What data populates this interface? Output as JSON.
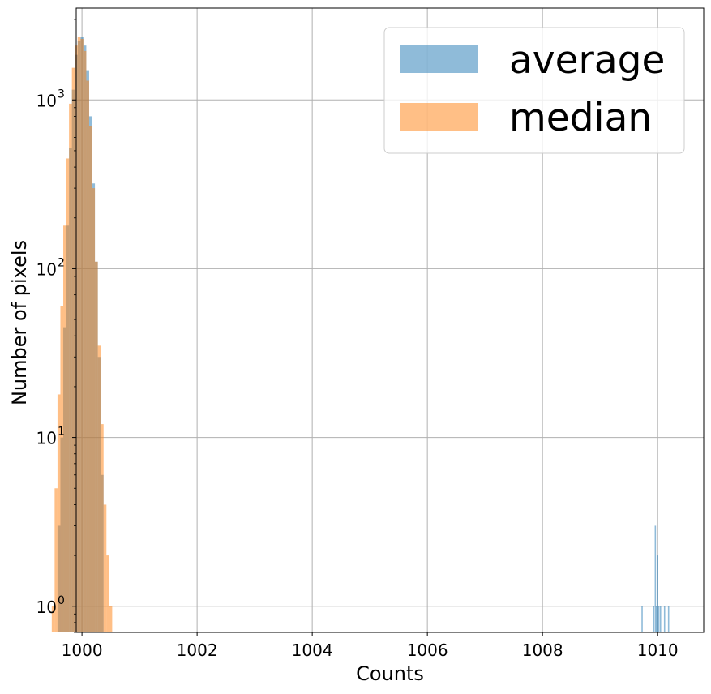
{
  "chart_data": {
    "type": "histogram",
    "xlabel": "Counts",
    "ylabel": "Number of pixels",
    "xlim": [
      999.9,
      1010.8
    ],
    "ylim": [
      0.7,
      3500
    ],
    "y_scale": "log",
    "grid": true,
    "legend_position": "top-right",
    "x_ticks": [
      "1000",
      "1002",
      "1004",
      "1006",
      "1008",
      "1010"
    ],
    "y_ticks": [
      {
        "base": "10",
        "exp": "0"
      },
      {
        "base": "10",
        "exp": "1"
      },
      {
        "base": "10",
        "exp": "2"
      },
      {
        "base": "10",
        "exp": "3"
      }
    ],
    "series": [
      {
        "name": "average",
        "color": "#1f77b4",
        "opacity": 0.5,
        "bins": [
          [
            999.6,
            3
          ],
          [
            999.65,
            10
          ],
          [
            999.7,
            45
          ],
          [
            999.75,
            180
          ],
          [
            999.8,
            520
          ],
          [
            999.85,
            1150
          ],
          [
            999.9,
            1850
          ],
          [
            999.95,
            2250
          ],
          [
            1000.0,
            2350
          ],
          [
            1000.05,
            2100
          ],
          [
            1000.1,
            1500
          ],
          [
            1000.15,
            800
          ],
          [
            1000.2,
            320
          ],
          [
            1000.25,
            110
          ],
          [
            1000.3,
            30
          ],
          [
            1000.35,
            6
          ],
          [
            1009.73,
            1
          ],
          [
            1009.93,
            1
          ],
          [
            1009.96,
            3
          ],
          [
            1009.98,
            1
          ],
          [
            1010.0,
            2
          ],
          [
            1010.02,
            1
          ],
          [
            1010.05,
            1
          ],
          [
            1010.12,
            1
          ],
          [
            1010.19,
            1
          ]
        ]
      },
      {
        "name": "median",
        "color": "#ff7f0e",
        "opacity": 0.5,
        "bins": [
          [
            999.5,
            1
          ],
          [
            999.55,
            5
          ],
          [
            999.6,
            18
          ],
          [
            999.65,
            60
          ],
          [
            999.7,
            180
          ],
          [
            999.75,
            450
          ],
          [
            999.8,
            950
          ],
          [
            999.85,
            1550
          ],
          [
            999.9,
            2100
          ],
          [
            999.95,
            2350
          ],
          [
            1000.0,
            2300
          ],
          [
            1000.05,
            1950
          ],
          [
            1000.1,
            1300
          ],
          [
            1000.15,
            700
          ],
          [
            1000.2,
            300
          ],
          [
            1000.25,
            110
          ],
          [
            1000.3,
            35
          ],
          [
            1000.35,
            12
          ],
          [
            1000.4,
            4
          ],
          [
            1000.45,
            2
          ],
          [
            1000.5,
            1
          ]
        ]
      }
    ]
  }
}
